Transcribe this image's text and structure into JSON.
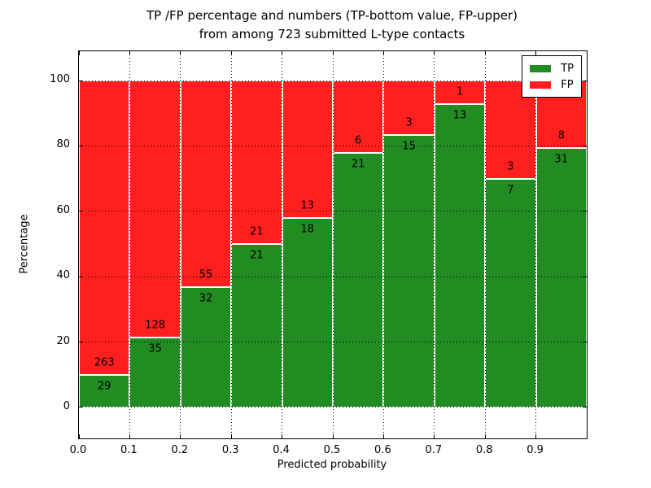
{
  "title": {
    "line1": "TP /FP percentage and numbers (TP-bottom value, FP-upper)",
    "line2": "from among 723 submitted L-type contacts"
  },
  "x_axis": {
    "label": "Predicted probability",
    "ticks": [
      "0.0",
      "0.1",
      "0.2",
      "0.3",
      "0.4",
      "0.5",
      "0.6",
      "0.7",
      "0.8",
      "0.9"
    ]
  },
  "y_axis": {
    "label": "Percentage",
    "ticks": [
      "0",
      "20",
      "40",
      "60",
      "80",
      "100"
    ]
  },
  "legend": {
    "items": [
      {
        "label": "TP",
        "color": "#228b22"
      },
      {
        "label": "FP",
        "color": "#ff1f1f"
      }
    ]
  },
  "colors": {
    "tp": "#228b22",
    "fp": "#ff1f1f",
    "grid": "#000000",
    "bar_edge": "#ffffff"
  },
  "chart_data": {
    "type": "bar",
    "stacked": true,
    "normalized": "percent_of_bin_total",
    "title": "TP /FP percentage and numbers (TP-bottom value, FP-upper) from among 723 submitted L-type contacts",
    "xlabel": "Predicted probability",
    "ylabel": "Percentage",
    "total_contacts": 723,
    "bin_width": 0.1,
    "bin_starts": [
      0.0,
      0.1,
      0.2,
      0.3,
      0.4,
      0.5,
      0.6,
      0.7,
      0.8,
      0.9
    ],
    "series": [
      {
        "name": "TP",
        "color": "#228b22",
        "counts": [
          29,
          35,
          32,
          21,
          18,
          21,
          15,
          13,
          7,
          31
        ]
      },
      {
        "name": "FP",
        "color": "#ff1f1f",
        "counts": [
          263,
          128,
          55,
          21,
          13,
          6,
          3,
          1,
          3,
          8
        ]
      }
    ],
    "tp_percent_by_bin": [
      9.93,
      21.47,
      36.78,
      50.0,
      58.06,
      77.78,
      83.33,
      92.86,
      70.0,
      79.49
    ],
    "xlim": [
      0.0,
      1.0
    ],
    "ylim": [
      -9.5,
      109.0
    ],
    "x_ticks": [
      0.0,
      0.1,
      0.2,
      0.3,
      0.4,
      0.5,
      0.6,
      0.7,
      0.8,
      0.9
    ],
    "y_ticks": [
      0,
      20,
      40,
      60,
      80,
      100
    ],
    "grid": "dotted",
    "legend_position": "upper right"
  }
}
